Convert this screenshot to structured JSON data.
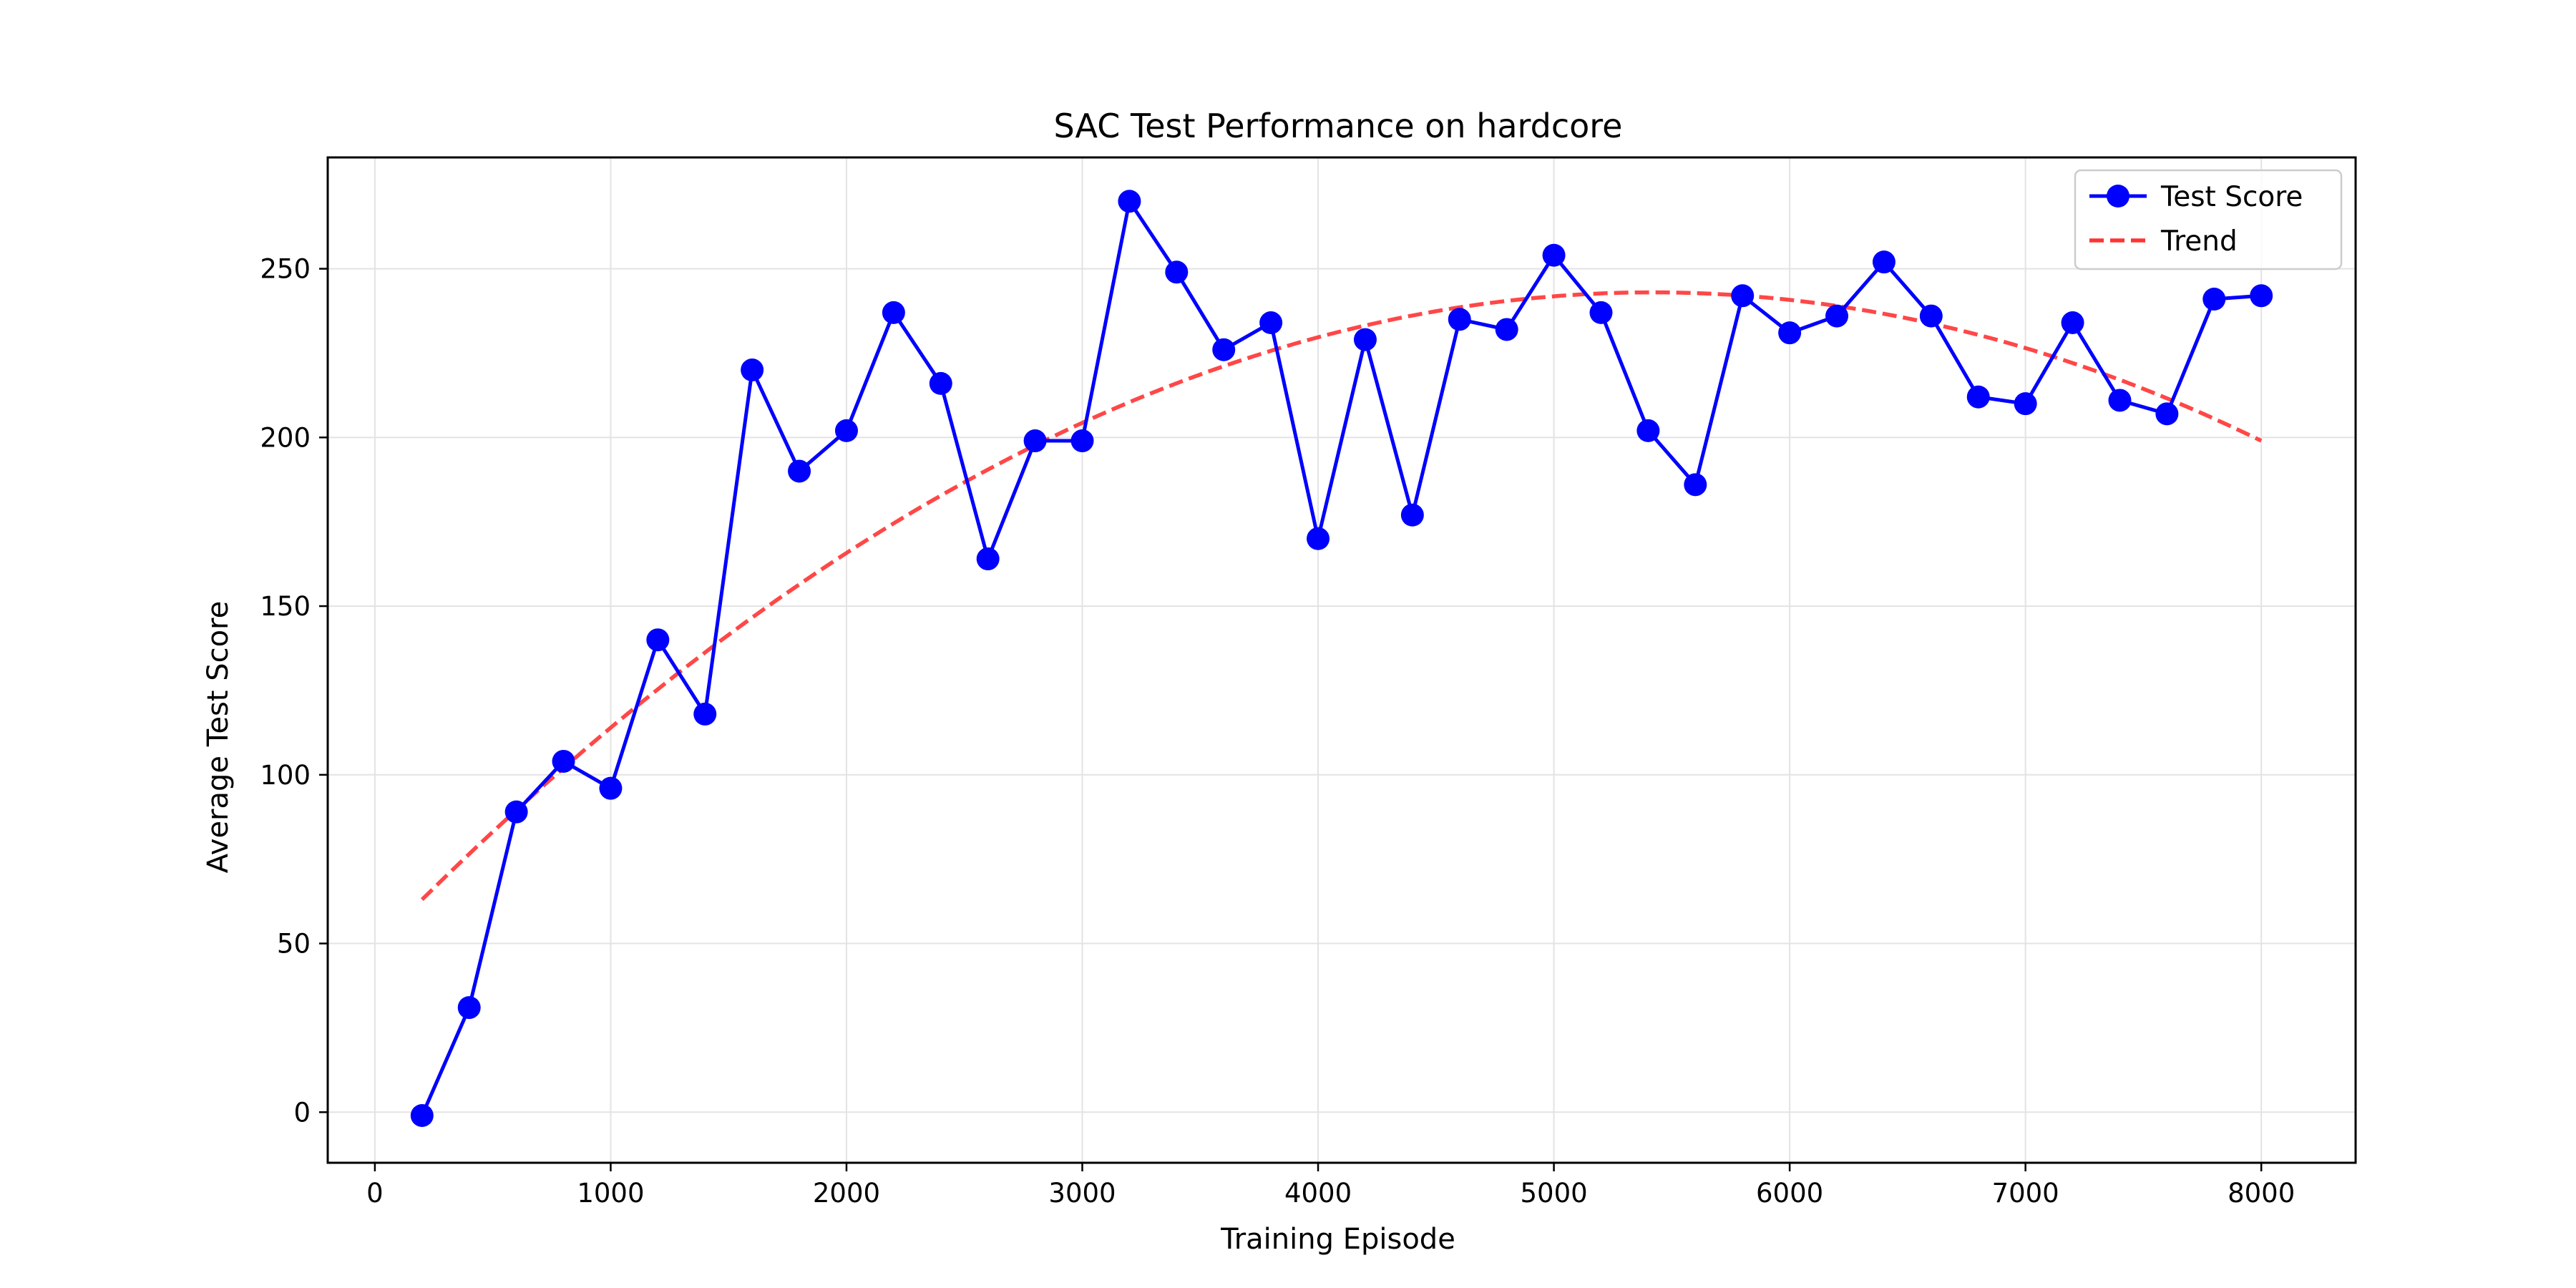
{
  "chart_data": {
    "type": "line",
    "title": "SAC Test Performance on hardcore",
    "xlabel": "Training Episode",
    "ylabel": "Average Test Score",
    "xlim": [
      -200,
      8400
    ],
    "ylim": [
      -15,
      283
    ],
    "xticks": [
      0,
      1000,
      2000,
      3000,
      4000,
      5000,
      6000,
      7000,
      8000
    ],
    "yticks": [
      0,
      50,
      100,
      150,
      200,
      250
    ],
    "grid": true,
    "legend_position": "top-right",
    "series": [
      {
        "name": "Test Score",
        "color": "#0000ff",
        "marker": "circle",
        "x": [
          200,
          400,
          600,
          800,
          1000,
          1200,
          1400,
          1600,
          1800,
          2000,
          2200,
          2400,
          2600,
          2800,
          3000,
          3200,
          3400,
          3600,
          3800,
          4000,
          4200,
          4400,
          4600,
          4800,
          5000,
          5200,
          5400,
          5600,
          5800,
          6000,
          6200,
          6400,
          6600,
          6800,
          7000,
          7200,
          7400,
          7600,
          7800,
          8000
        ],
        "y": [
          -1,
          31,
          89,
          104,
          96,
          140,
          118,
          220,
          190,
          202,
          237,
          216,
          164,
          199,
          199,
          270,
          249,
          226,
          234,
          170,
          229,
          177,
          235,
          232,
          254,
          237,
          202,
          186,
          242,
          231,
          236,
          252,
          236,
          212,
          210,
          234,
          211,
          207,
          241,
          242
        ]
      },
      {
        "name": "Trend",
        "color": "#ff3333",
        "style": "dashed",
        "x_range": [
          200,
          8000
        ],
        "fit": "quadratic",
        "y_at": {
          "200": 63,
          "5400": 243,
          "8000": 199
        }
      }
    ]
  }
}
